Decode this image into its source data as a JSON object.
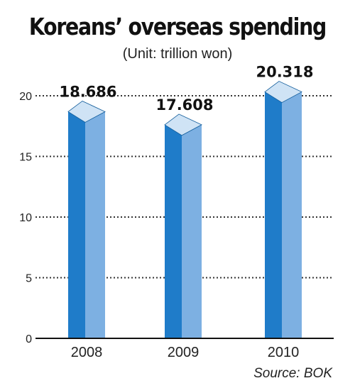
{
  "title": "Koreans’ overseas spending",
  "subtitle": "(Unit: trillion won)",
  "source": "Source: BOK",
  "colors": {
    "bar_front": "#1f7cc9",
    "bar_side": "#7db0e2",
    "bar_top": "#cfe3f5",
    "bar_outline": "#0e5a99",
    "grid": "#333333",
    "axis": "#111111"
  },
  "chart_data": {
    "type": "bar",
    "title": "Koreans’ overseas spending",
    "subtitle": "(Unit: trillion won)",
    "xlabel": "",
    "ylabel": "",
    "categories": [
      "2008",
      "2009",
      "2010"
    ],
    "values": [
      18.686,
      17.608,
      20.318
    ],
    "value_labels": [
      "18.686",
      "17.608",
      "20.318"
    ],
    "yticks": [
      0,
      5,
      10,
      15,
      20
    ],
    "ylim": [
      0,
      20.5
    ],
    "grid": true,
    "grid_style": "dotted",
    "style": "3d-bar",
    "legend": "none"
  }
}
